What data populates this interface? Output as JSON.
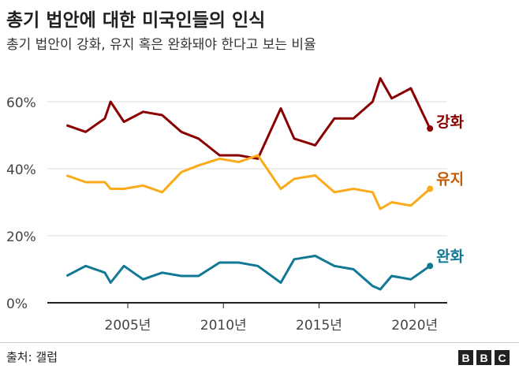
{
  "title": "총기 법안에 대한 미국인들의 인식",
  "subtitle": "총기 법안이 강화, 유지 혹은 완화돼야 한다고 보는 비율",
  "source": "출처: 갤럽",
  "logo": "BBC",
  "chart_data": {
    "type": "line",
    "title": "총기 법안에 대한 미국인들의 인식",
    "subtitle": "총기 법안이 강화, 유지 혹은 완화돼야 한다고 보는 비율",
    "x": [
      2001.8,
      2002.8,
      2003.8,
      2004.1,
      2004.8,
      2005.8,
      2006.8,
      2007.8,
      2008.7,
      2009.8,
      2010.8,
      2011.8,
      2013.0,
      2013.7,
      2014.8,
      2015.8,
      2016.8,
      2017.8,
      2018.2,
      2018.8,
      2019.8,
      2020.8
    ],
    "xlim": [
      2000.8,
      2022.3
    ],
    "xticks": [
      2005,
      2010,
      2015,
      2020
    ],
    "xtick_labels": [
      "2005년",
      "2010년",
      "2015년",
      "2020년"
    ],
    "ylim": [
      0,
      70
    ],
    "yticks": [
      0,
      20,
      40,
      60
    ],
    "ytick_labels": [
      "0%",
      "20%",
      "40%",
      "60%"
    ],
    "grid": true,
    "legend": "direct labels at line ends (right)",
    "series": [
      {
        "name": "강화",
        "color": "#8a0000",
        "values": [
          53,
          51,
          55,
          60,
          54,
          57,
          56,
          51,
          49,
          44,
          44,
          43,
          58,
          49,
          47,
          55,
          55,
          60,
          67,
          61,
          64,
          52
        ]
      },
      {
        "name": "유지",
        "color": "#fbaa19",
        "label_color": "#c45b00",
        "values": [
          38,
          36,
          36,
          34,
          34,
          35,
          33,
          39,
          41,
          43,
          42,
          44,
          34,
          37,
          38,
          33,
          34,
          33,
          28,
          30,
          29,
          34
        ]
      },
      {
        "name": "완화",
        "color": "#127995",
        "values": [
          8,
          11,
          9,
          6,
          11,
          7,
          9,
          8,
          8,
          12,
          12,
          11,
          6,
          13,
          14,
          11,
          10,
          5,
          4,
          8,
          7,
          11
        ]
      }
    ]
  }
}
